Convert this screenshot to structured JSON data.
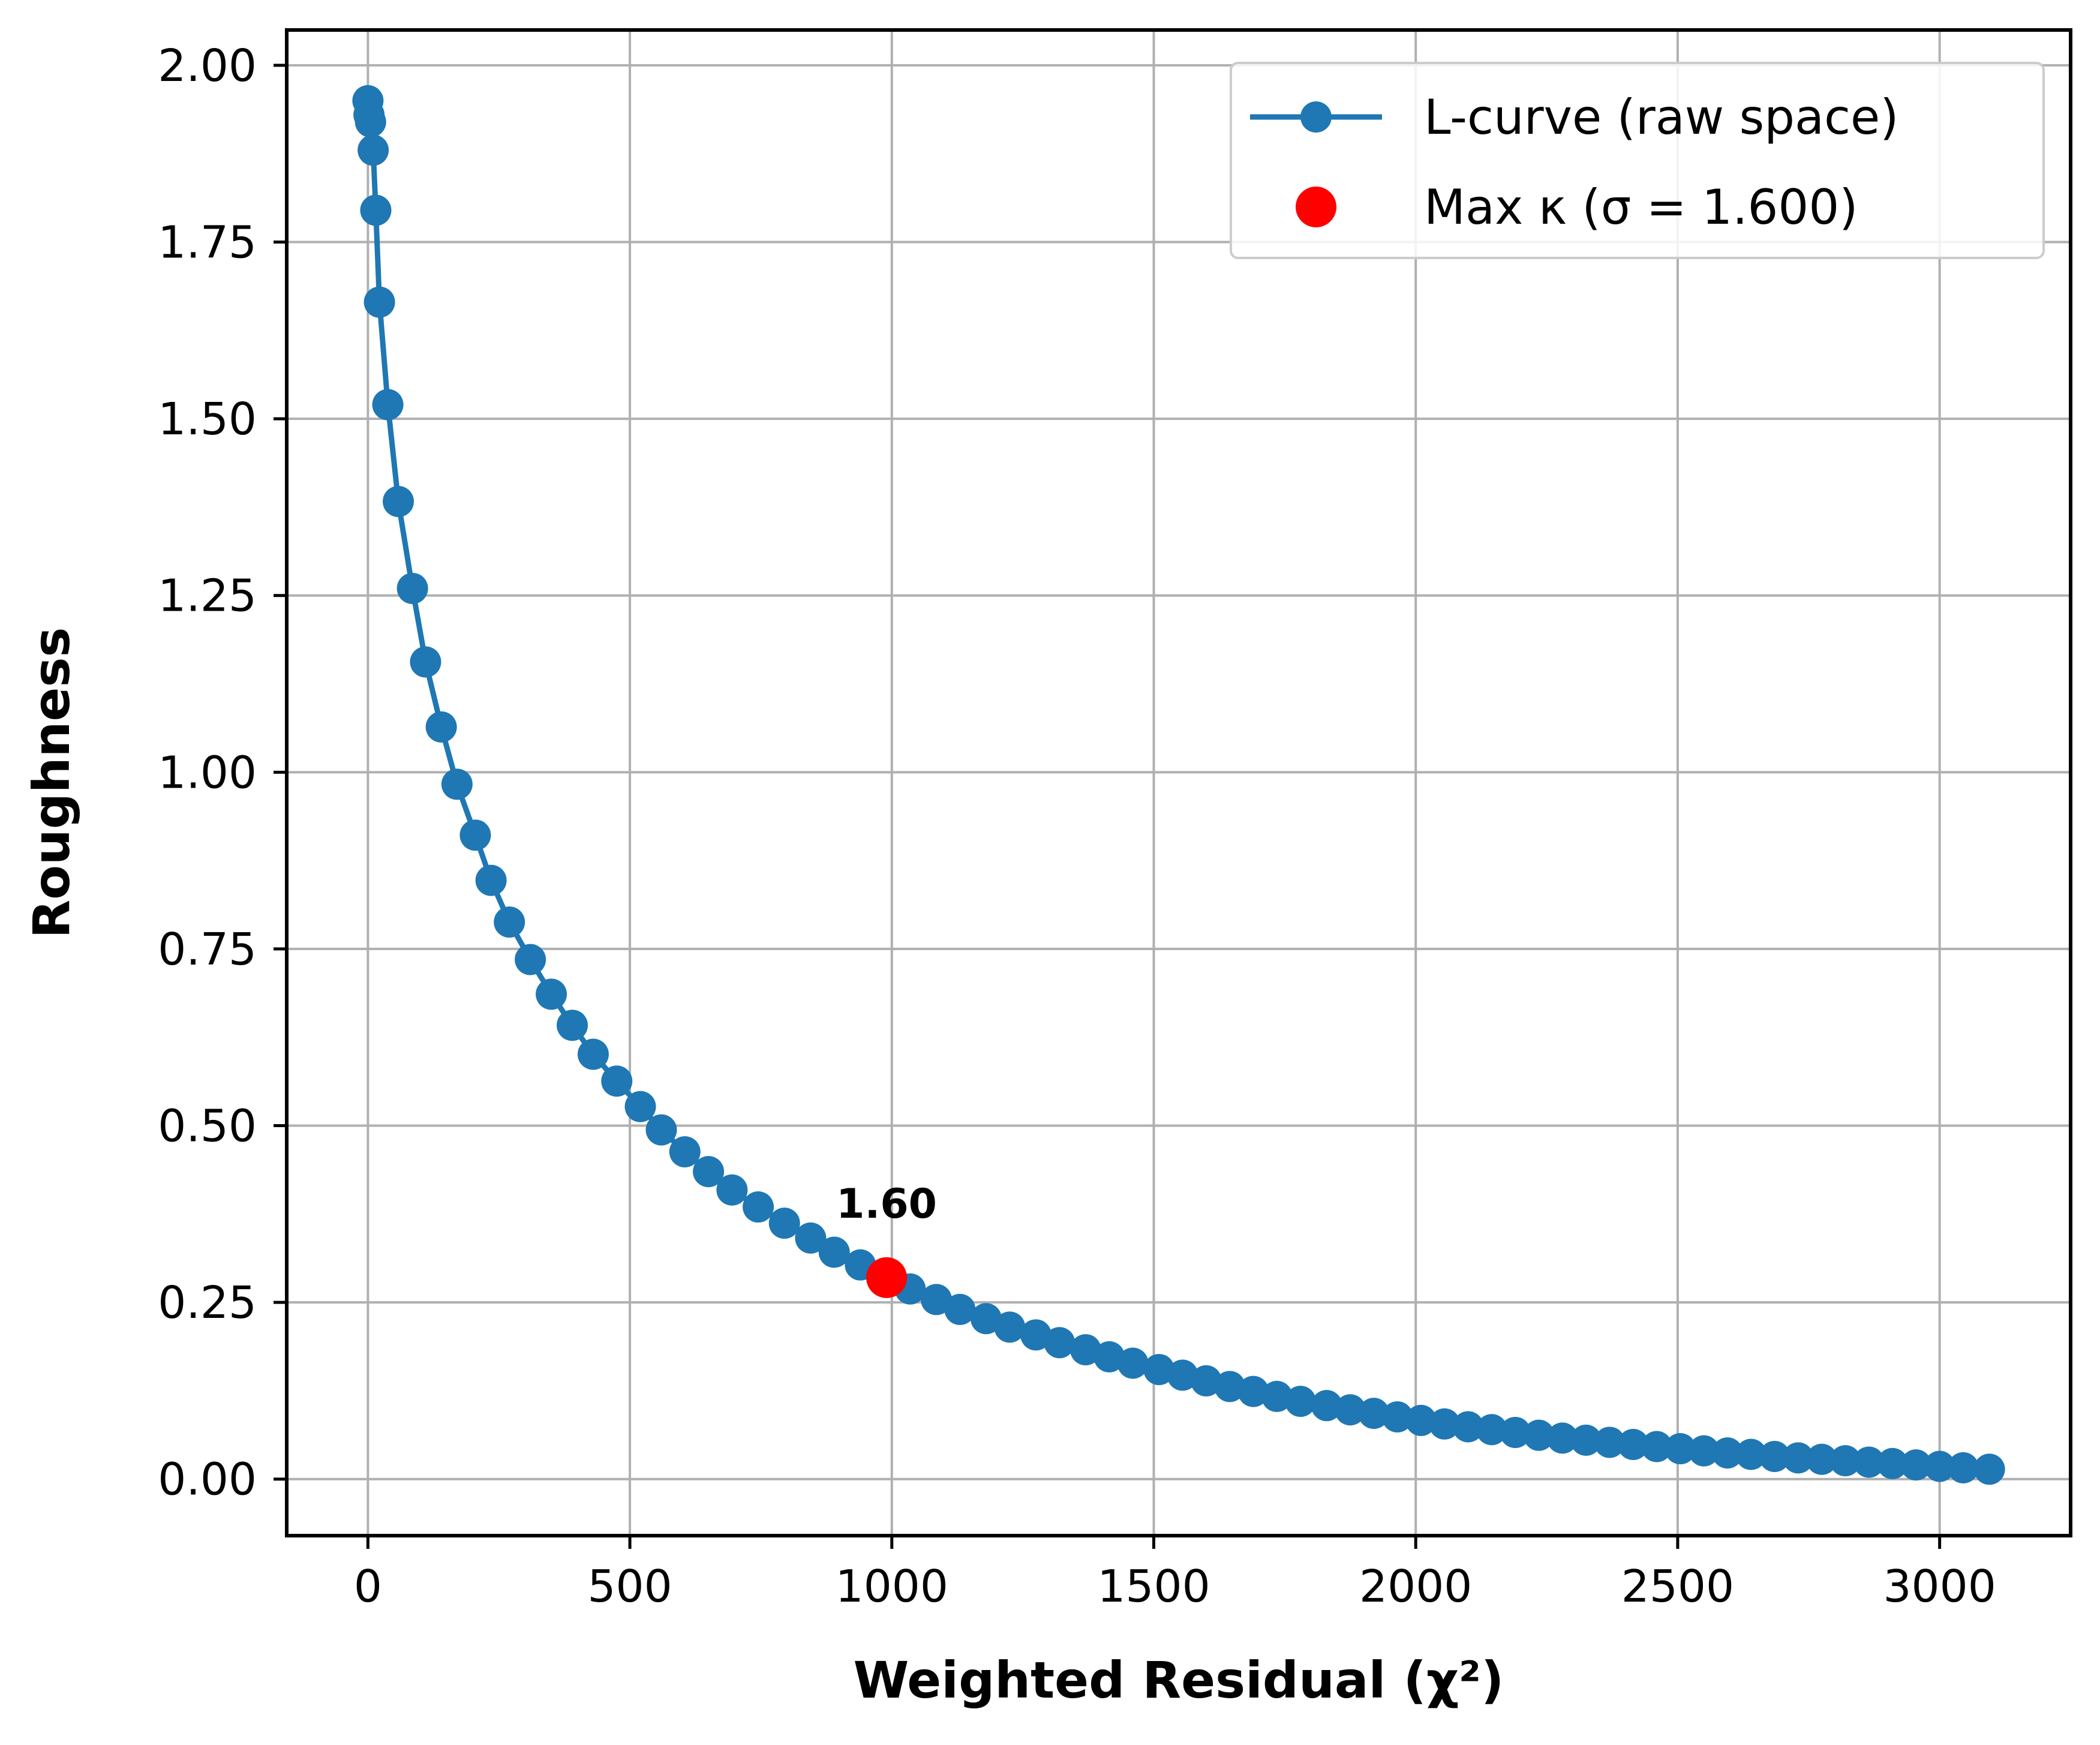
{
  "chart_data": {
    "type": "line",
    "xlabel": "Weighted Residual (χ²)",
    "ylabel": "Roughness",
    "xlim": [
      -155,
      3250
    ],
    "ylim": [
      -0.08,
      2.05
    ],
    "x_ticks": [
      0,
      500,
      1000,
      1500,
      2000,
      2500,
      3000
    ],
    "y_ticks": [
      0.0,
      0.25,
      0.5,
      0.75,
      1.0,
      1.25,
      1.5,
      1.75,
      2.0
    ],
    "x_tick_labels": [
      "0",
      "500",
      "1000",
      "1500",
      "2000",
      "2500",
      "3000"
    ],
    "y_tick_labels": [
      "0.00",
      "0.25",
      "0.50",
      "0.75",
      "1.00",
      "1.25",
      "1.50",
      "1.75",
      "2.00"
    ],
    "grid": true,
    "legend_position": "upper-right",
    "series": [
      {
        "name": "L-curve (raw space)",
        "color": "#1f77b4",
        "x": [
          0,
          2,
          5,
          10,
          15,
          22,
          38,
          58,
          85,
          110,
          140,
          170,
          205,
          235,
          270,
          310,
          350,
          390,
          430,
          475,
          520,
          560,
          605,
          650,
          695,
          745,
          795,
          845,
          890,
          940,
          990,
          1035,
          1085,
          1130,
          1180,
          1225,
          1275,
          1320,
          1370,
          1415,
          1460,
          1510,
          1555,
          1600,
          1645,
          1690,
          1735,
          1780,
          1830,
          1875,
          1920,
          1965,
          2010,
          2055,
          2100,
          2145,
          2190,
          2235,
          2280,
          2325,
          2370,
          2415,
          2460,
          2505,
          2550,
          2595,
          2640,
          2685,
          2730,
          2775,
          2820,
          2865,
          2910,
          2955,
          3000,
          3045,
          3095
        ],
        "y": [
          1.95,
          1.93,
          1.92,
          1.88,
          1.795,
          1.665,
          1.52,
          1.383,
          1.26,
          1.156,
          1.064,
          0.983,
          0.911,
          0.847,
          0.788,
          0.735,
          0.686,
          0.642,
          0.601,
          0.563,
          0.527,
          0.494,
          0.463,
          0.435,
          0.409,
          0.385,
          0.362,
          0.341,
          0.321,
          0.303,
          0.285,
          0.269,
          0.254,
          0.24,
          0.227,
          0.215,
          0.204,
          0.193,
          0.183,
          0.173,
          0.164,
          0.155,
          0.147,
          0.139,
          0.131,
          0.124,
          0.117,
          0.11,
          0.104,
          0.098,
          0.093,
          0.088,
          0.083,
          0.078,
          0.074,
          0.07,
          0.066,
          0.062,
          0.058,
          0.055,
          0.052,
          0.049,
          0.046,
          0.043,
          0.04,
          0.037,
          0.035,
          0.032,
          0.03,
          0.028,
          0.026,
          0.024,
          0.022,
          0.02,
          0.018,
          0.016,
          0.014
        ]
      },
      {
        "name": "Max κ (σ = 1.600)",
        "color": "#ff0000",
        "x": [
          990
        ],
        "y": [
          0.285
        ]
      }
    ],
    "annotations": [
      {
        "text": "1.60",
        "x": 990,
        "y": 0.285
      }
    ]
  }
}
